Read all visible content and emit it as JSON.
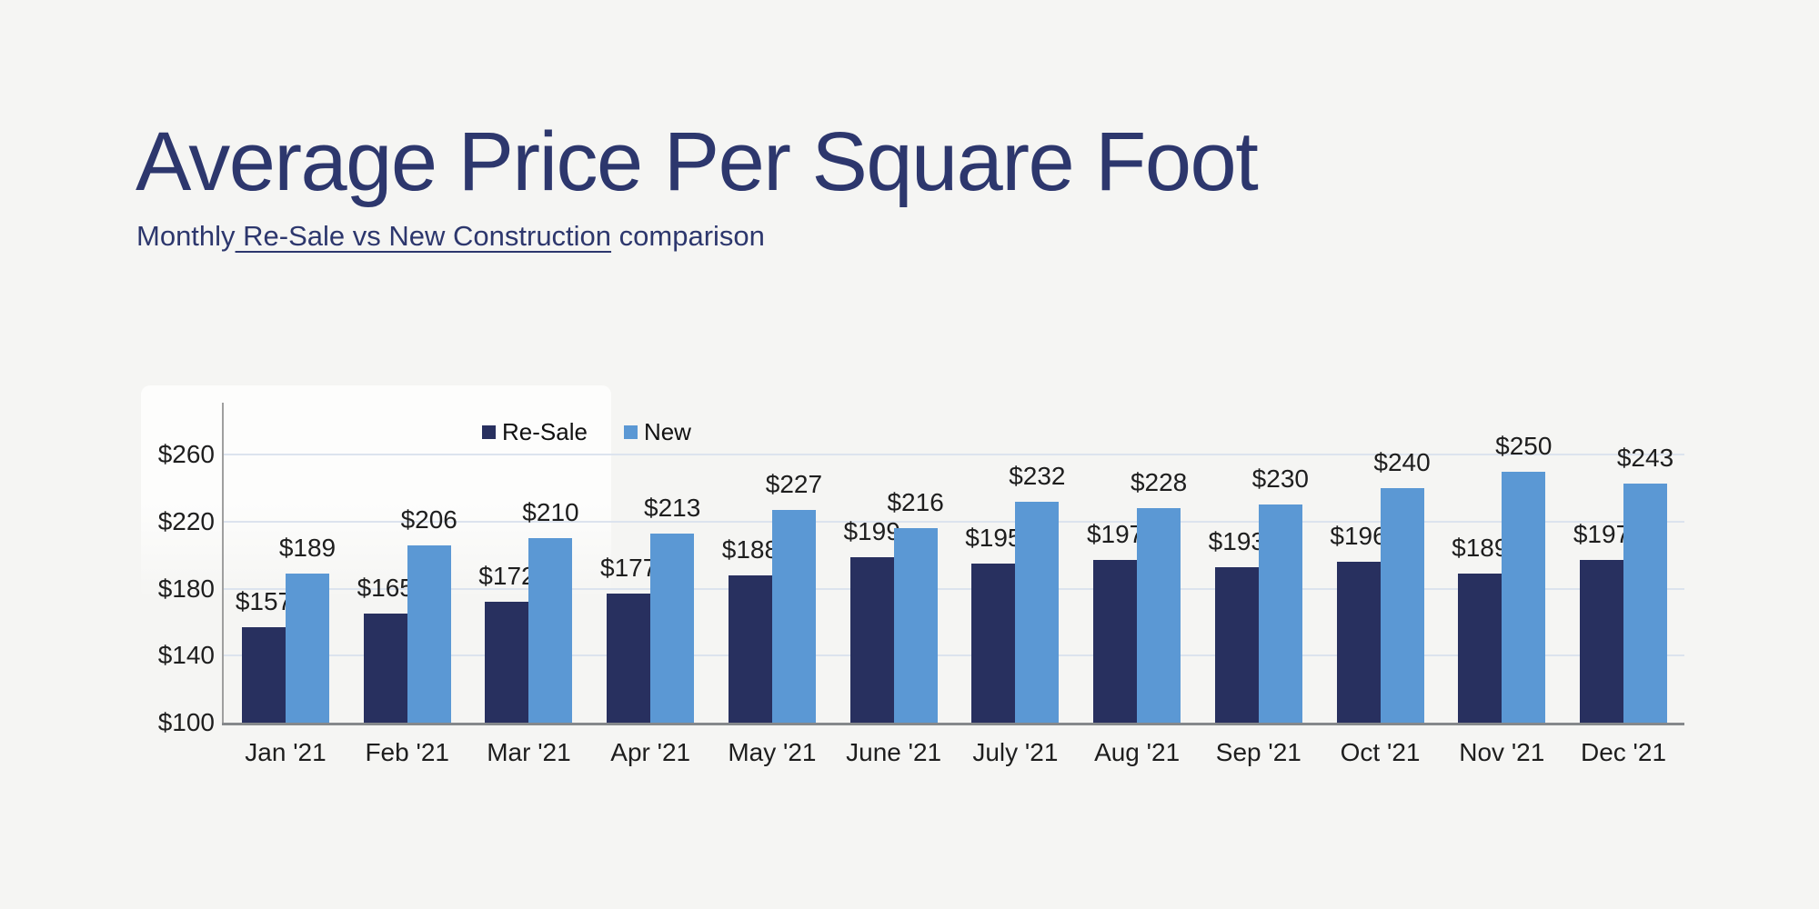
{
  "header": {
    "title": "Average Price Per Square Foot",
    "subtitle_prefix": "Monthly",
    "subtitle_link": " Re-Sale vs New Construction",
    "subtitle_suffix": " comparison"
  },
  "chart_data": {
    "type": "bar",
    "title": "Average Price Per Square Foot",
    "subtitle": "Monthly Re-Sale vs New Construction comparison",
    "categories": [
      "Jan '21",
      "Feb '21",
      "Mar '21",
      "Apr '21",
      "May '21",
      "June '21",
      "July '21",
      "Aug '21",
      "Sep '21",
      "Oct '21",
      "Nov '21",
      "Dec '21"
    ],
    "series": [
      {
        "name": "Re-Sale",
        "color": "#28305f",
        "values": [
          157,
          165,
          172,
          177,
          188,
          199,
          195,
          197,
          193,
          196,
          189,
          197
        ]
      },
      {
        "name": "New",
        "color": "#5b98d4",
        "values": [
          189,
          206,
          210,
          213,
          227,
          216,
          232,
          228,
          230,
          240,
          250,
          243
        ]
      }
    ],
    "value_prefix": "$",
    "yticks": [
      100,
      140,
      180,
      220,
      260
    ],
    "ylim": [
      100,
      292
    ],
    "grid": true,
    "legend_position": "top"
  },
  "colors": {
    "background": "#f5f5f3",
    "card": "#fdfdfc",
    "title_text": "#2d376d",
    "gridline": "#dce3ee",
    "y_axis_line": "#9f9f9f",
    "x_axis_line": "#85888b",
    "chart_text": "#1e1e1e",
    "legend_text": "#111111"
  }
}
